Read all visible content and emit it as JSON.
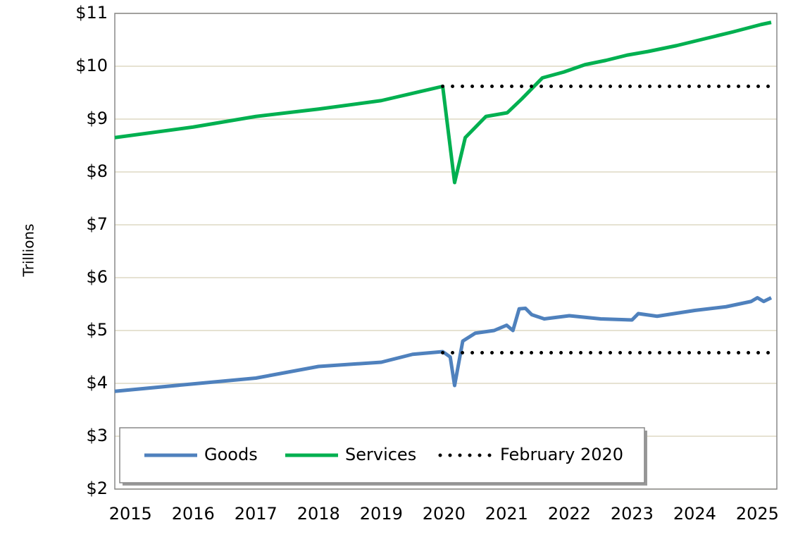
{
  "chart_data": {
    "type": "line",
    "y_label": "Trillions",
    "xlim": [
      2014.75,
      2025.31
    ],
    "xticks": [
      2015,
      2016,
      2017,
      2018,
      2019,
      2020,
      2021,
      2022,
      2023,
      2024,
      2025
    ],
    "ylim": [
      2,
      11
    ],
    "yticks": [
      {
        "value": 2,
        "label": "$2"
      },
      {
        "value": 3,
        "label": "$3"
      },
      {
        "value": 4,
        "label": "$4"
      },
      {
        "value": 5,
        "label": "$5"
      },
      {
        "value": 6,
        "label": "$6"
      },
      {
        "value": 7,
        "label": "$7"
      },
      {
        "value": 8,
        "label": "$8"
      },
      {
        "value": 9,
        "label": "$9"
      },
      {
        "value": 10,
        "label": "$10"
      },
      {
        "value": 11,
        "label": "$11"
      }
    ],
    "grid": true,
    "legend": "lower left",
    "series": [
      {
        "name": "Goods",
        "color": "#4f81bd",
        "style": "solid",
        "x": [
          2014.75,
          2016,
          2017,
          2018,
          2019,
          2019.5,
          2019.98,
          2020.1,
          2020.17,
          2020.3,
          2020.5,
          2020.8,
          2021.0,
          2021.1,
          2021.2,
          2021.3,
          2021.4,
          2021.6,
          2022,
          2022.5,
          2023,
          2023.1,
          2023.4,
          2024,
          2024.5,
          2024.9,
          2025.0,
          2025.1,
          2025.22
        ],
        "values": [
          3.85,
          3.99,
          4.1,
          4.32,
          4.4,
          4.55,
          4.6,
          4.5,
          3.96,
          4.8,
          4.95,
          5.0,
          5.1,
          5.0,
          5.41,
          5.42,
          5.3,
          5.22,
          5.28,
          5.22,
          5.2,
          5.32,
          5.27,
          5.38,
          5.45,
          5.55,
          5.62,
          5.55,
          5.62
        ]
      },
      {
        "name": "Services",
        "color": "#00b050",
        "style": "solid",
        "x": [
          2014.75,
          2016,
          2017,
          2018,
          2019,
          2019.98,
          2020.17,
          2020.34,
          2020.67,
          2021.01,
          2021.24,
          2021.57,
          2021.91,
          2022.25,
          2022.58,
          2022.92,
          2023.26,
          2023.71,
          2024.16,
          2024.61,
          2025.06,
          2025.22
        ],
        "values": [
          8.65,
          8.85,
          9.05,
          9.19,
          9.35,
          9.62,
          7.8,
          8.65,
          9.05,
          9.12,
          9.38,
          9.78,
          9.89,
          10.03,
          10.11,
          10.21,
          10.28,
          10.39,
          10.52,
          10.65,
          10.79,
          10.83
        ]
      },
      {
        "name": "February 2020",
        "color": "#000000",
        "style": "dotted",
        "x": [
          2019.98,
          2025.22,
          2019.98,
          2019.98,
          2025.22
        ],
        "values": [
          9.62,
          9.62,
          null,
          4.58,
          4.58
        ]
      }
    ]
  }
}
